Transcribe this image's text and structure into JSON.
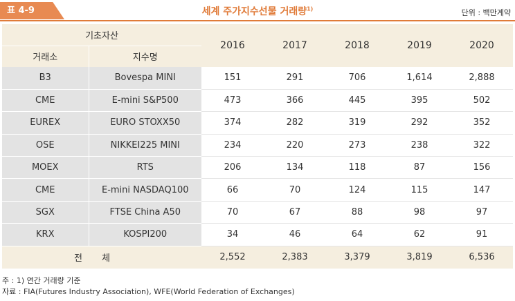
{
  "header": {
    "table_label": "표 4-9",
    "title": "세계 주가지수선물 거래량",
    "title_note": "1)",
    "unit": "단위 : 백만계약"
  },
  "table": {
    "group_header": "기초자산",
    "col_exchange": "거래소",
    "col_index": "지수명",
    "years": [
      "2016",
      "2017",
      "2018",
      "2019",
      "2020"
    ],
    "rows": [
      {
        "exchange": "B3",
        "index": "Bovespa MINI",
        "values": [
          "151",
          "291",
          "706",
          "1,614",
          "2,888"
        ]
      },
      {
        "exchange": "CME",
        "index": "E-mini S&P500",
        "values": [
          "473",
          "366",
          "445",
          "395",
          "502"
        ]
      },
      {
        "exchange": "EUREX",
        "index": "EURO STOXX50",
        "values": [
          "374",
          "282",
          "319",
          "292",
          "352"
        ]
      },
      {
        "exchange": "OSE",
        "index": "NIKKEI225 MINI",
        "values": [
          "234",
          "220",
          "273",
          "238",
          "322"
        ]
      },
      {
        "exchange": "MOEX",
        "index": "RTS",
        "values": [
          "206",
          "134",
          "118",
          "87",
          "156"
        ]
      },
      {
        "exchange": "CME",
        "index": "E-mini NASDAQ100",
        "values": [
          "66",
          "70",
          "124",
          "115",
          "147"
        ]
      },
      {
        "exchange": "SGX",
        "index": "FTSE China A50",
        "values": [
          "70",
          "67",
          "88",
          "98",
          "97"
        ]
      },
      {
        "exchange": "KRX",
        "index": "KOSPI200",
        "values": [
          "34",
          "46",
          "64",
          "62",
          "91"
        ]
      }
    ],
    "total": {
      "label": "전체",
      "values": [
        "2,552",
        "2,383",
        "3,379",
        "3,819",
        "6,536"
      ]
    }
  },
  "notes": {
    "note1": "주 : 1) 연간 거래량 기준",
    "source": "자료 : FIA(Futures Industry Association), WFE(World Federation of Exchanges)"
  },
  "colors": {
    "accent": "#e07b39",
    "header_bg": "#f5eedf",
    "label_bg": "#e3e3e3"
  }
}
